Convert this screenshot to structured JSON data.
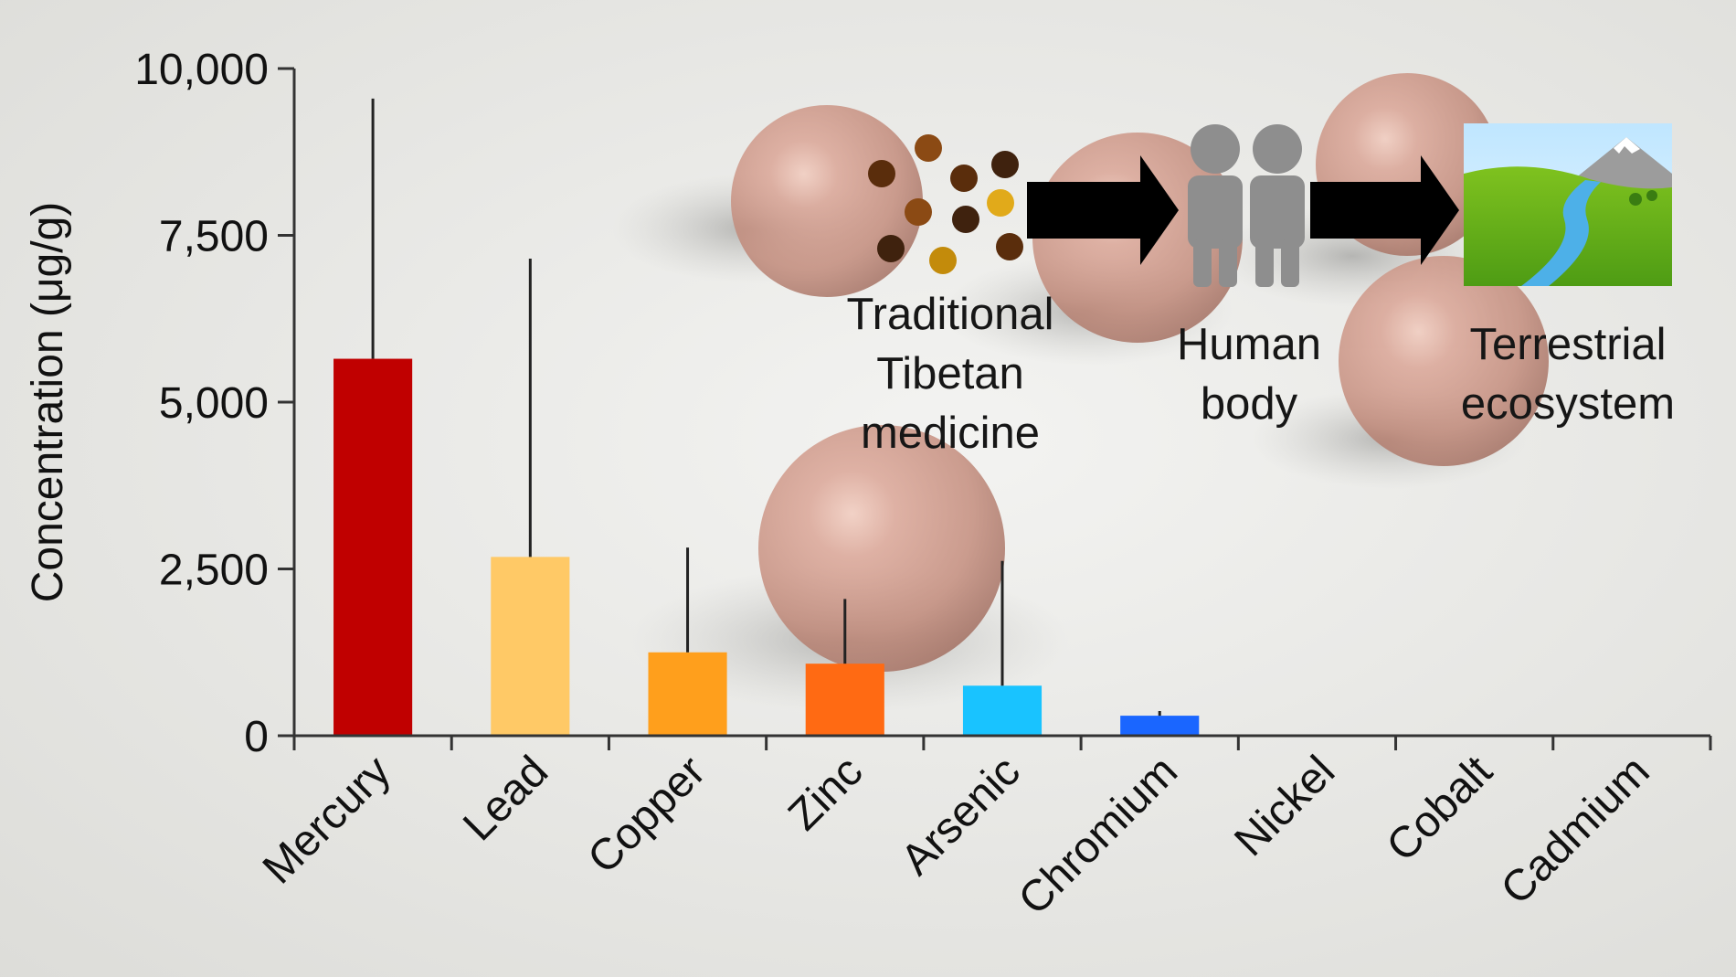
{
  "chart_data": {
    "type": "bar",
    "title": "",
    "xlabel": "",
    "ylabel": "Concentration (μg/g)",
    "ylim": [
      0,
      10000
    ],
    "yticks": [
      0,
      2500,
      5000,
      7500,
      10000
    ],
    "ytick_labels": [
      "0",
      "2,500",
      "5,000",
      "7,500",
      "10,000"
    ],
    "categories": [
      "Mercury",
      "Lead",
      "Copper",
      "Zinc",
      "Arsenic",
      "Chromium",
      "Nickel",
      "Cobalt",
      "Cadmium"
    ],
    "values": [
      5650,
      2680,
      1250,
      1080,
      750,
      300,
      0,
      0,
      0
    ],
    "error_upper": [
      9550,
      7150,
      2820,
      2050,
      2620,
      370,
      0,
      0,
      0
    ],
    "colors": [
      "#c00000",
      "#ffc966",
      "#ff9f1c",
      "#ff6a13",
      "#19c3ff",
      "#1a66ff",
      "#888888",
      "#888888",
      "#888888"
    ],
    "grid": false,
    "legend": "none"
  },
  "overlay": {
    "source_label": [
      "Traditional",
      "Tibetan",
      "medicine"
    ],
    "body_label": [
      "Human",
      "body"
    ],
    "ecosystem_label": [
      "Terrestrial",
      "ecosystem"
    ],
    "icons": [
      "particles-icon",
      "arrow-right-icon",
      "people-icon",
      "arrow-right-icon",
      "landscape-icon"
    ],
    "particle_colors": [
      "#5a2d0c",
      "#8b4a14",
      "#c38b0b",
      "#e1aa1a",
      "#3f220e"
    ]
  }
}
